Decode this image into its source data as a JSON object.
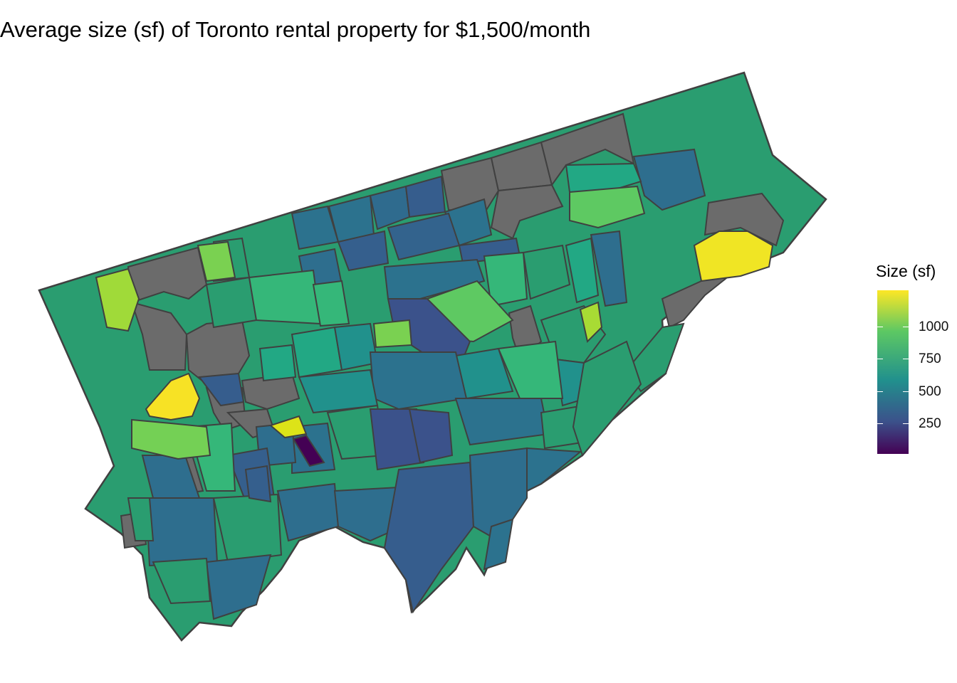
{
  "title": "Average size (sf) of Toronto rental property for $1,500/month",
  "legend": {
    "title": "Size (sf)",
    "ticks": [
      "250",
      "500",
      "750",
      "1000"
    ],
    "tick_values": [
      250,
      500,
      750,
      1000
    ],
    "range": [
      0,
      1300
    ],
    "colors": {
      "low": "#440154",
      "mid_low": "#3b528b",
      "mid": "#21908d",
      "mid_high": "#5dc863",
      "high": "#fde725",
      "missing": "#6b6b6b"
    }
  },
  "map": {
    "region": "Toronto",
    "border_color": "#404040"
  }
}
